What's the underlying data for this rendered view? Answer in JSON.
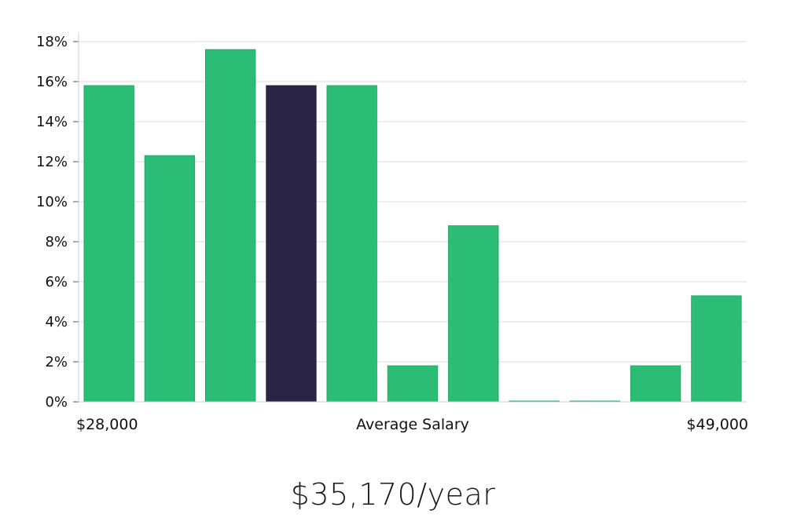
{
  "chart_data": {
    "type": "bar",
    "values": [
      15.8,
      12.3,
      17.6,
      15.8,
      15.8,
      1.8,
      8.8,
      0.0,
      0.0,
      1.8,
      5.3
    ],
    "highlight_index": 3,
    "ylim": [
      0,
      18
    ],
    "yticks": [
      "0%",
      "2%",
      "4%",
      "6%",
      "8%",
      "10%",
      "12%",
      "14%",
      "16%",
      "18%"
    ],
    "ytick_values": [
      0,
      2,
      4,
      6,
      8,
      10,
      12,
      14,
      16,
      18
    ],
    "x_min_label": "$28,000",
    "x_center_label": "Average Salary",
    "x_max_label": "$49,000",
    "grid": true,
    "colors": {
      "bar": "#2bbd76",
      "bar_stroke": "#22a865",
      "highlight": "#2a2545"
    }
  },
  "salary_label": "$35,170/year"
}
